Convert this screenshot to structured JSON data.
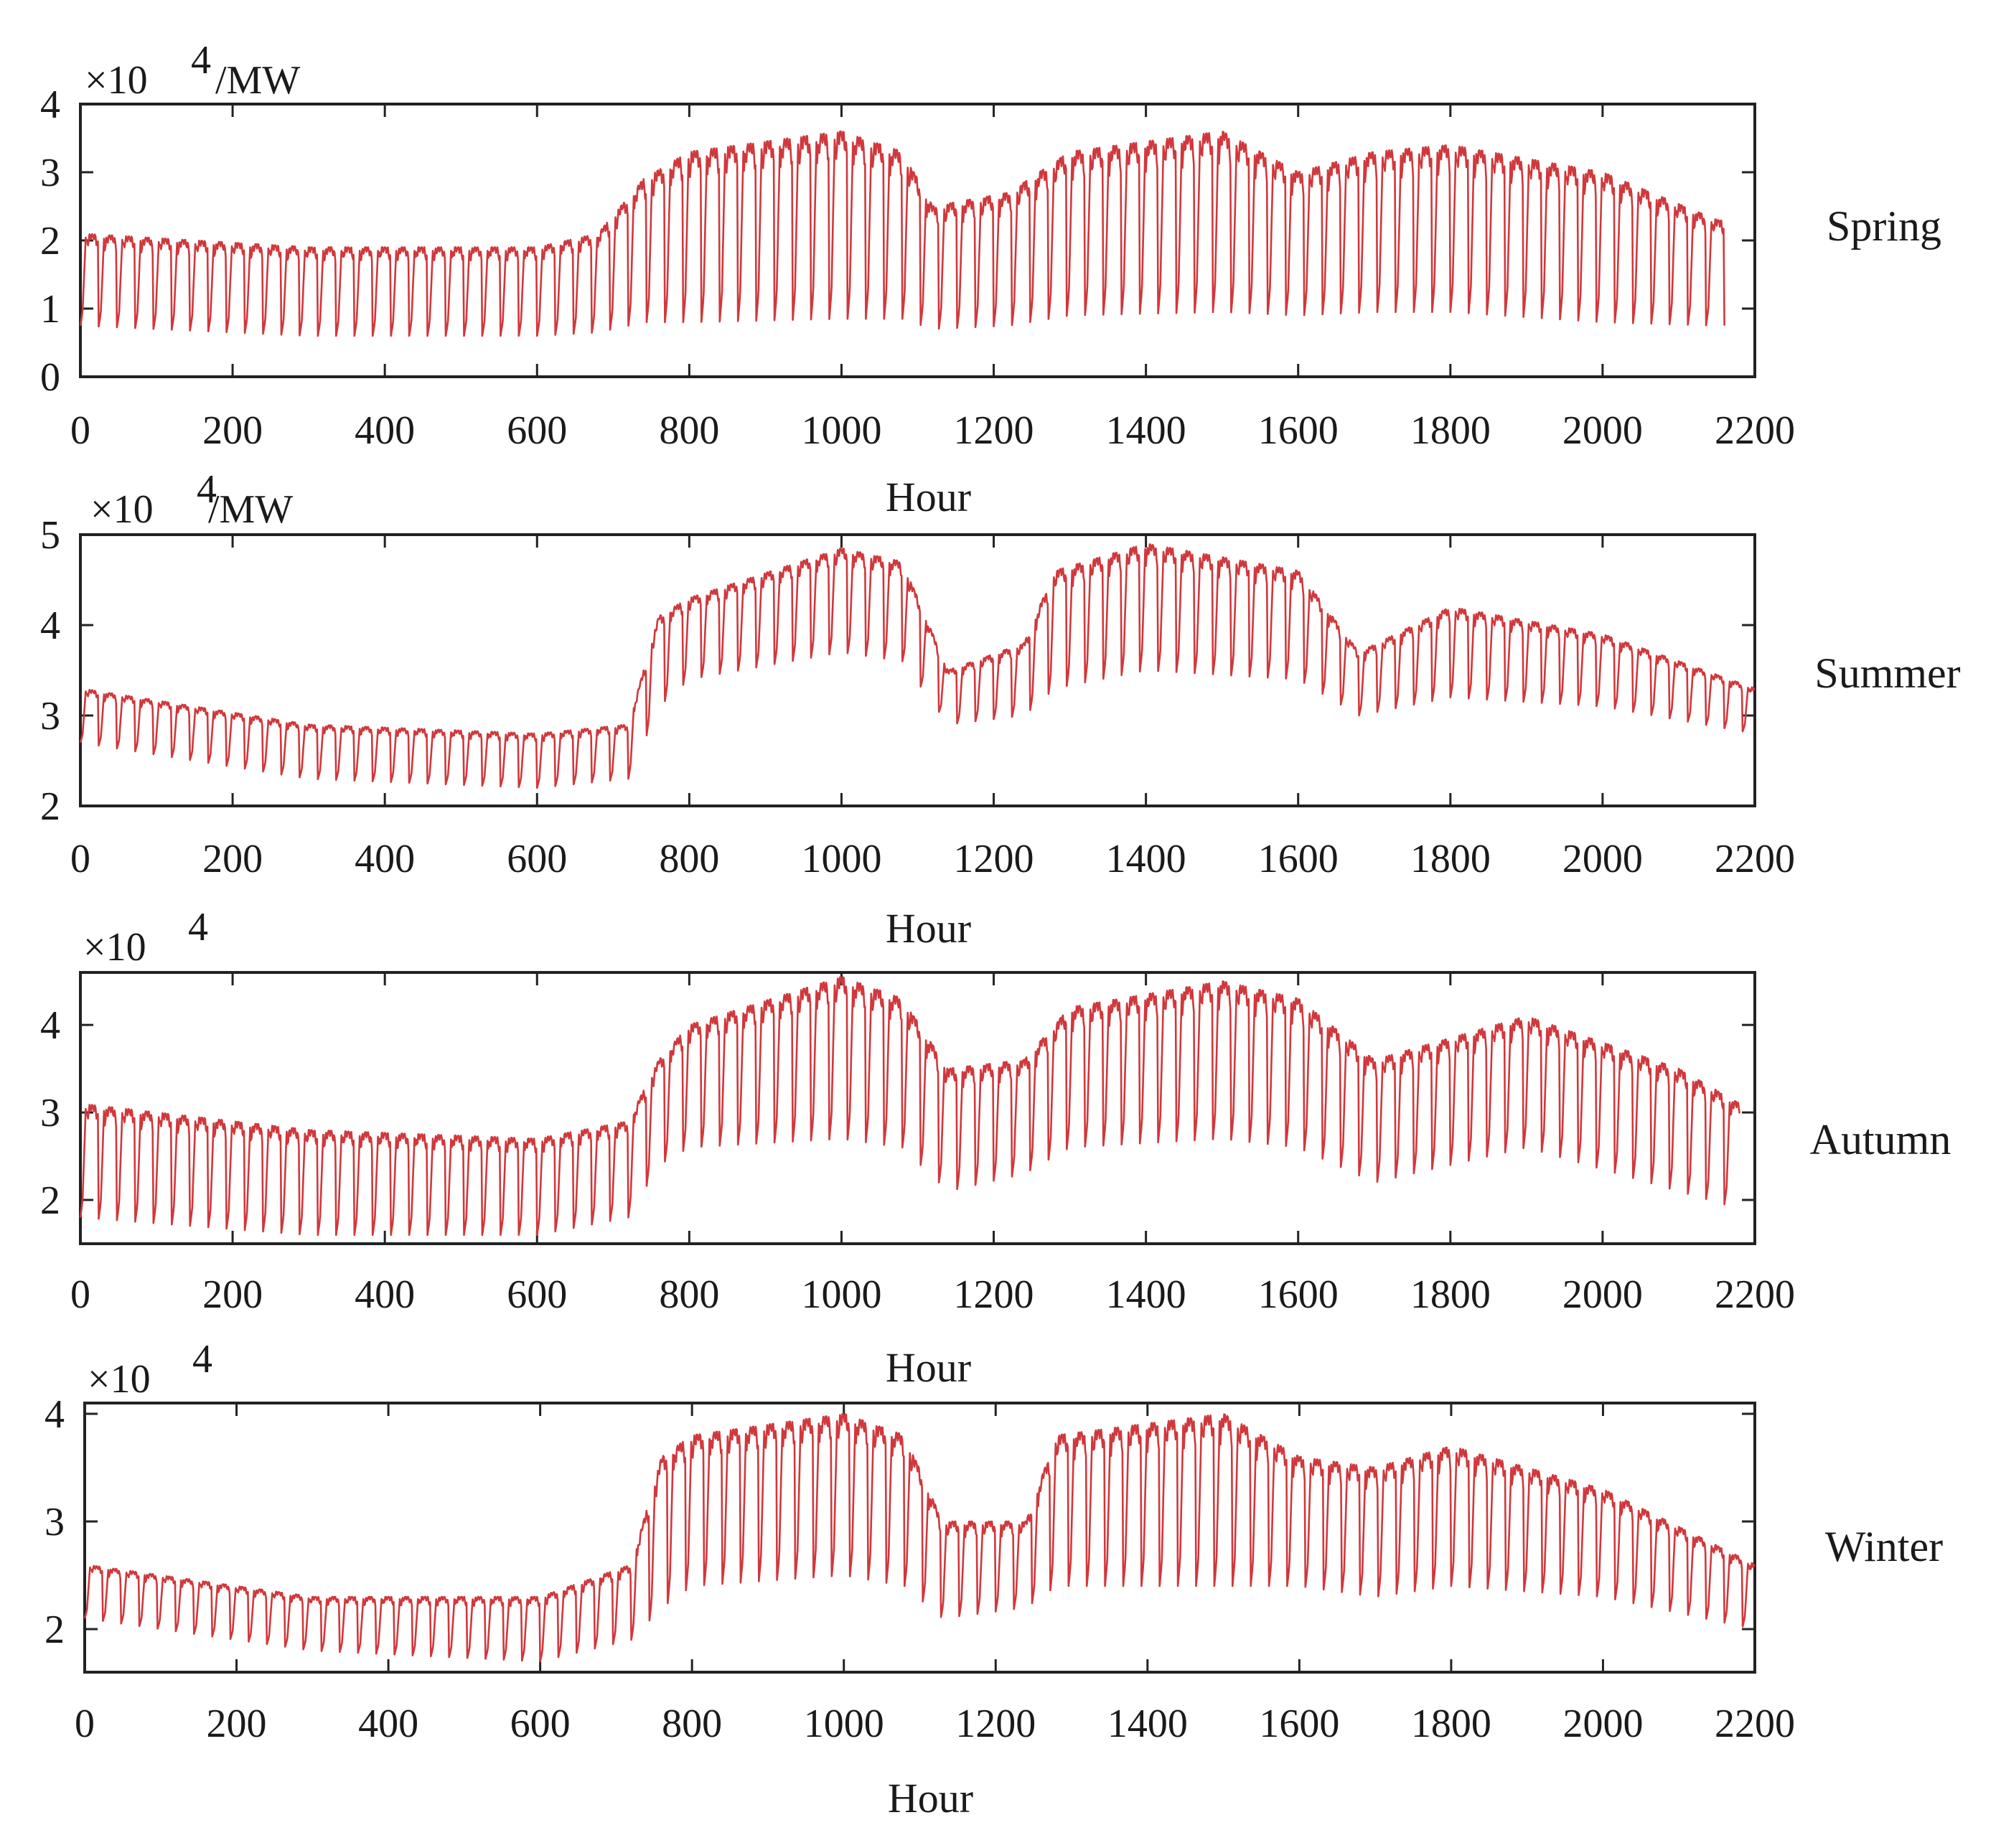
{
  "figure": {
    "series_color": "#d0383c"
  },
  "chart_data": [
    {
      "type": "line",
      "season": "Spring",
      "scale_label": "×10",
      "scale_exponent": "4",
      "unit_label": "/MW",
      "xlabel": "Hour",
      "ylabel": "",
      "xlim": [
        0,
        2200
      ],
      "ylim": [
        0,
        4
      ],
      "xticks": [
        0,
        200,
        400,
        600,
        800,
        1000,
        1200,
        1400,
        1600,
        1800,
        2000,
        2200
      ],
      "yticks": [
        0,
        1,
        2,
        3,
        4
      ],
      "x_end": 2160,
      "period_hours": 24,
      "knots": {
        "x": [
          0,
          300,
          600,
          680,
          740,
          800,
          1000,
          1080,
          1120,
          1220,
          1300,
          1500,
          1600,
          1700,
          1800,
          2000,
          2150
        ],
        "peak": [
          2.1,
          1.9,
          1.9,
          2.1,
          2.9,
          3.3,
          3.6,
          3.3,
          2.5,
          2.7,
          3.3,
          3.6,
          3.0,
          3.3,
          3.4,
          3.0,
          2.3
        ],
        "trough": [
          0.75,
          0.6,
          0.6,
          0.65,
          0.8,
          0.8,
          0.85,
          0.85,
          0.7,
          0.75,
          0.9,
          0.95,
          0.9,
          0.95,
          0.95,
          0.8,
          0.75
        ]
      }
    },
    {
      "type": "line",
      "season": "Summer",
      "scale_label": "×10",
      "scale_exponent": "4",
      "unit_label": "/MW",
      "xlabel": "Hour",
      "ylabel": "",
      "xlim": [
        0,
        2200
      ],
      "ylim": [
        2,
        5
      ],
      "xticks": [
        0,
        200,
        400,
        600,
        800,
        1000,
        1200,
        1400,
        1600,
        1800,
        2000,
        2200
      ],
      "yticks": [
        2,
        3,
        4,
        5
      ],
      "x_end": 2200,
      "period_hours": 24,
      "knots": {
        "x": [
          0,
          300,
          600,
          720,
          760,
          800,
          1000,
          1080,
          1140,
          1240,
          1280,
          1400,
          1600,
          1680,
          1800,
          2000,
          2200
        ],
        "peak": [
          3.3,
          2.9,
          2.8,
          2.9,
          4.1,
          4.3,
          4.85,
          4.7,
          3.5,
          3.8,
          4.6,
          4.9,
          4.6,
          3.7,
          4.2,
          3.9,
          3.3
        ],
        "trough": [
          2.7,
          2.3,
          2.2,
          2.3,
          3.1,
          3.4,
          3.7,
          3.6,
          2.9,
          3.0,
          3.3,
          3.5,
          3.4,
          3.0,
          3.2,
          3.1,
          2.8
        ]
      }
    },
    {
      "type": "line",
      "season": "Autumn",
      "scale_label": "×10",
      "scale_exponent": "4",
      "unit_label": "",
      "xlabel": "Hour",
      "ylabel": "",
      "xlim": [
        0,
        2200
      ],
      "ylim": [
        1.5,
        4.6
      ],
      "xticks": [
        0,
        200,
        400,
        600,
        800,
        1000,
        1200,
        1400,
        1600,
        1800,
        2000,
        2200
      ],
      "yticks": [
        2,
        3,
        4
      ],
      "x_end": 2180,
      "period_hours": 24,
      "knots": {
        "x": [
          0,
          300,
          600,
          720,
          760,
          800,
          1000,
          1080,
          1140,
          1240,
          1300,
          1500,
          1600,
          1700,
          1900,
          2100,
          2180
        ],
        "peak": [
          3.1,
          2.8,
          2.7,
          2.9,
          3.6,
          4.0,
          4.55,
          4.3,
          3.5,
          3.6,
          4.2,
          4.5,
          4.3,
          3.6,
          4.1,
          3.5,
          3.1
        ],
        "trough": [
          1.8,
          1.6,
          1.6,
          1.8,
          2.4,
          2.6,
          2.7,
          2.6,
          2.1,
          2.3,
          2.6,
          2.7,
          2.6,
          2.2,
          2.6,
          2.1,
          1.9
        ]
      }
    },
    {
      "type": "line",
      "season": "Winter",
      "scale_label": "×10",
      "scale_exponent": "4",
      "unit_label": "",
      "xlabel": "Hour",
      "ylabel": "",
      "xlim": [
        0,
        2200
      ],
      "ylim": [
        1.6,
        4.1
      ],
      "xticks": [
        0,
        200,
        400,
        600,
        800,
        1000,
        1200,
        1400,
        1600,
        1800,
        2000,
        2200
      ],
      "yticks": [
        2,
        3,
        4
      ],
      "x_end": 2200,
      "period_hours": 24,
      "knots": {
        "x": [
          0,
          300,
          600,
          720,
          760,
          800,
          1000,
          1080,
          1130,
          1240,
          1280,
          1500,
          1600,
          1700,
          1800,
          2000,
          2200
        ],
        "peak": [
          2.6,
          2.3,
          2.3,
          2.6,
          3.6,
          3.8,
          4.0,
          3.8,
          3.0,
          3.0,
          3.8,
          4.0,
          3.6,
          3.5,
          3.7,
          3.3,
          2.6
        ],
        "trough": [
          2.1,
          1.8,
          1.7,
          1.9,
          2.2,
          2.4,
          2.5,
          2.4,
          2.1,
          2.2,
          2.4,
          2.4,
          2.4,
          2.3,
          2.4,
          2.3,
          2.0
        ]
      }
    }
  ]
}
